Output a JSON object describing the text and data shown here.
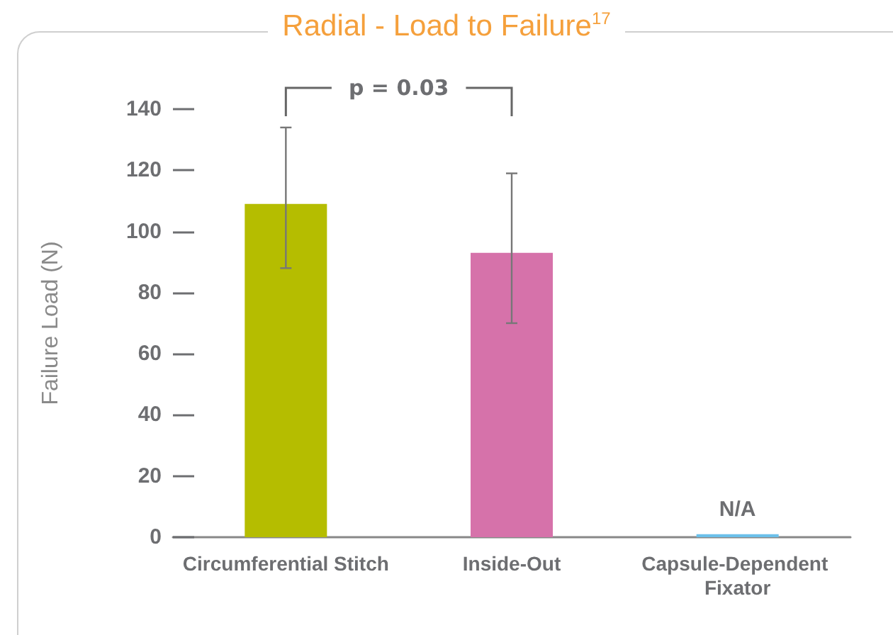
{
  "chart_data": {
    "type": "bar",
    "title": "Radial - Load to Failure$^{17}$",
    "ylabel": "Failure Load (N)",
    "categories": [
      "Circumferential Stitch",
      "Inside-Out",
      "Capsule-Dependent Fixator"
    ],
    "values": [
      109,
      93,
      1
    ],
    "colors": [
      "#b5bd00",
      "#d672aa",
      "#6cc0ea"
    ],
    "errors": [
      [
        88,
        134
      ],
      [
        70,
        119
      ],
      null
    ],
    "value_labels": [
      null,
      null,
      "N/A"
    ],
    "annotations": [
      "p = 0.03"
    ],
    "ylim": [
      0,
      140
    ],
    "yticks": [
      0,
      20,
      40,
      60,
      80,
      100,
      120,
      140
    ],
    "grid": false
  }
}
